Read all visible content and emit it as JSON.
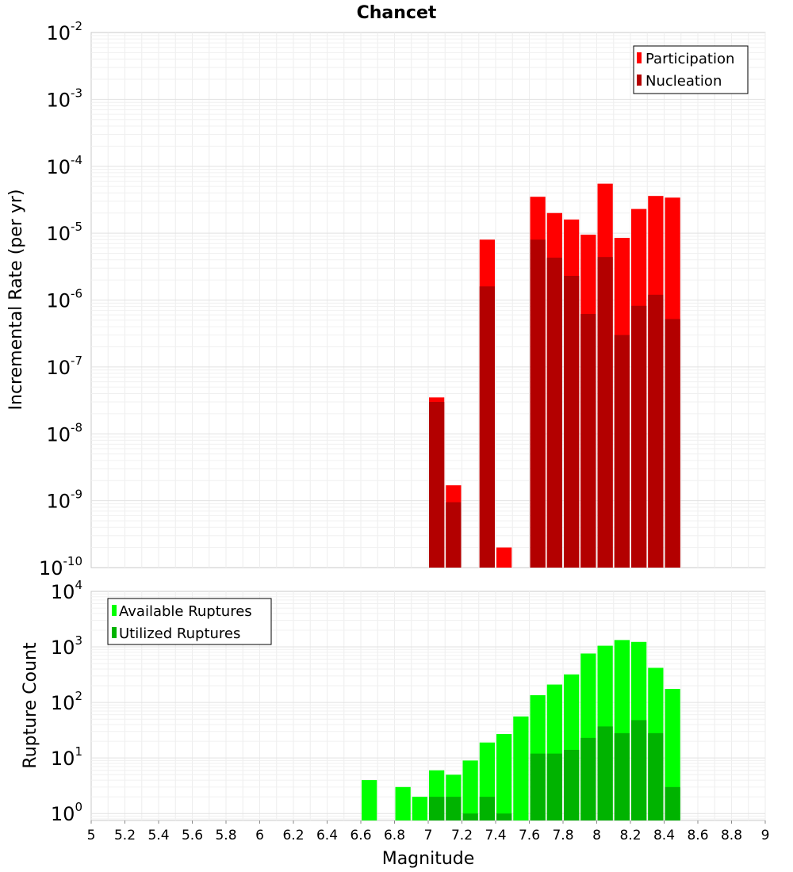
{
  "chart_data": [
    {
      "type": "bar",
      "title": "Chancet",
      "xlabel": "",
      "ylabel": "Incremental Rate (per yr)",
      "yscale": "log",
      "xlim": [
        5,
        9
      ],
      "ylim": [
        1e-10,
        0.01
      ],
      "ytick_exponents": [
        "-2",
        "-3",
        "-4",
        "-5",
        "-6",
        "-7",
        "-8",
        "-9",
        "-10"
      ],
      "ytick_base": "10",
      "grid": true,
      "legend_position": "top-right",
      "series": [
        {
          "name": "Participation",
          "color": "#ff0000",
          "x": [
            7.05,
            7.15,
            7.35,
            7.45,
            7.65,
            7.75,
            7.85,
            7.95,
            8.05,
            8.15,
            8.25,
            8.35,
            8.45
          ],
          "values": [
            3.5e-08,
            1.7e-09,
            8e-06,
            2e-10,
            3.5e-05,
            2e-05,
            1.6e-05,
            9.5e-06,
            5.5e-05,
            8.5e-06,
            2.3e-05,
            3.6e-05,
            3.4e-05
          ]
        },
        {
          "name": "Nucleation",
          "color": "#b30000",
          "x": [
            7.05,
            7.15,
            7.35,
            7.65,
            7.75,
            7.85,
            7.95,
            8.05,
            8.15,
            8.25,
            8.35,
            8.45
          ],
          "values": [
            3e-08,
            9.5e-10,
            1.6e-06,
            8e-06,
            4.3e-06,
            2.3e-06,
            6.2e-07,
            4.4e-06,
            3e-07,
            8.2e-07,
            1.2e-06,
            5.2e-07
          ]
        }
      ]
    },
    {
      "type": "bar",
      "title": "",
      "xlabel": "Magnitude",
      "ylabel": "Rupture Count",
      "yscale": "log",
      "xlim": [
        5,
        9
      ],
      "ylim": [
        0.75,
        10000
      ],
      "ytick_exponents": [
        "4",
        "3",
        "2",
        "1",
        "0"
      ],
      "ytick_base": "10",
      "xticks": [
        "5",
        "5.2",
        "5.4",
        "5.6",
        "5.8",
        "6",
        "6.2",
        "6.4",
        "6.6",
        "6.8",
        "7",
        "7.2",
        "7.4",
        "7.6",
        "7.8",
        "8",
        "8.2",
        "8.4",
        "8.6",
        "8.8",
        "9"
      ],
      "grid": true,
      "legend_position": "top-left",
      "series": [
        {
          "name": "Available Ruptures",
          "color": "#00ff00",
          "x": [
            6.65,
            6.85,
            6.95,
            7.05,
            7.15,
            7.25,
            7.35,
            7.45,
            7.55,
            7.65,
            7.75,
            7.85,
            7.95,
            8.05,
            8.15,
            8.25,
            8.35,
            8.45
          ],
          "values": [
            4,
            3,
            2,
            6,
            5,
            9,
            19,
            27,
            56,
            135,
            210,
            320,
            760,
            1050,
            1330,
            1230,
            420,
            175
          ]
        },
        {
          "name": "Utilized Ruptures",
          "color": "#00b300",
          "x": [
            7.05,
            7.15,
            7.25,
            7.35,
            7.45,
            7.65,
            7.75,
            7.85,
            7.95,
            8.05,
            8.15,
            8.25,
            8.35,
            8.45
          ],
          "values": [
            2,
            2,
            1,
            2,
            1,
            12,
            12,
            14,
            23,
            37,
            28,
            48,
            28,
            3
          ]
        }
      ]
    }
  ]
}
